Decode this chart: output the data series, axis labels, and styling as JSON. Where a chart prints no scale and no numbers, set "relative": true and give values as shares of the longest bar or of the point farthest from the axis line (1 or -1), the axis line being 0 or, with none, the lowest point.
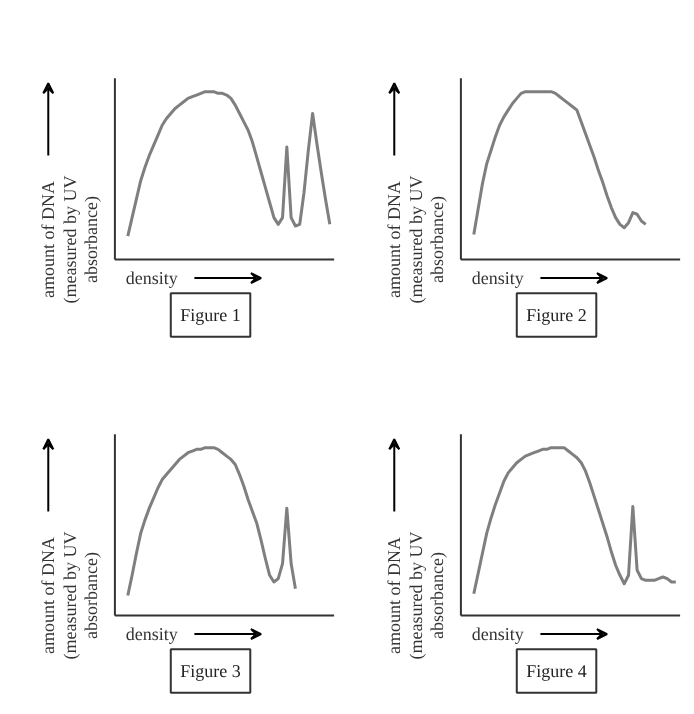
{
  "chart_data": [
    {
      "type": "line",
      "title": "Figure 1",
      "xlabel": "density",
      "ylabel": "amount of DNA (measured by UV absorbance)",
      "relative": true,
      "color": "#7f7f7f",
      "categories": [
        null,
        null,
        null,
        null,
        null,
        null,
        null,
        null,
        null,
        null,
        null,
        null,
        null,
        null,
        null,
        null,
        null,
        null,
        null,
        null,
        null,
        null,
        null,
        null,
        null,
        null,
        null,
        null,
        null,
        null,
        null,
        null,
        null,
        null,
        null,
        null,
        null,
        null,
        null,
        null,
        null,
        null,
        null,
        null,
        null,
        null,
        null,
        null
      ],
      "values": [
        0.14,
        0.25,
        0.36,
        0.47,
        0.55,
        0.62,
        0.68,
        0.74,
        0.8,
        0.84,
        0.87,
        0.9,
        0.92,
        0.94,
        0.96,
        0.97,
        0.98,
        0.99,
        1.0,
        1.0,
        1.0,
        0.99,
        0.99,
        0.98,
        0.96,
        0.92,
        0.87,
        0.82,
        0.77,
        0.7,
        0.61,
        0.52,
        0.43,
        0.34,
        0.25,
        0.21,
        0.25,
        0.67,
        0.25,
        0.2,
        0.21,
        0.4,
        0.65,
        0.87,
        0.69,
        0.52,
        0.36,
        0.21
      ]
    },
    {
      "type": "line",
      "title": "Figure 2",
      "xlabel": "density",
      "ylabel": "amount of DNA (measured by UV absorbance)",
      "relative": true,
      "color": "#7f7f7f",
      "categories": [
        null,
        null,
        null,
        null,
        null,
        null,
        null,
        null,
        null,
        null,
        null,
        null,
        null,
        null,
        null,
        null,
        null,
        null,
        null,
        null,
        null,
        null,
        null,
        null,
        null,
        null,
        null,
        null,
        null,
        null,
        null,
        null,
        null,
        null,
        null,
        null,
        null,
        null,
        null,
        null,
        null,
        null,
        null,
        null,
        null,
        null,
        null,
        null
      ],
      "values": [
        0.15,
        0.3,
        0.45,
        0.57,
        0.65,
        0.73,
        0.8,
        0.85,
        0.89,
        0.93,
        0.96,
        0.99,
        1.0,
        1.0,
        1.0,
        1.0,
        1.0,
        1.0,
        1.0,
        0.99,
        0.97,
        0.95,
        0.93,
        0.91,
        0.89,
        0.82,
        0.75,
        0.68,
        0.61,
        0.53,
        0.46,
        0.38,
        0.31,
        0.25,
        0.21,
        0.19,
        0.22,
        0.28,
        0.27,
        0.23,
        0.21,
        null,
        null,
        null,
        null,
        null,
        null,
        null
      ]
    },
    {
      "type": "line",
      "title": "Figure 3",
      "xlabel": "density",
      "ylabel": "amount of DNA (measured by UV absorbance)",
      "relative": true,
      "color": "#7f7f7f",
      "categories": [
        null,
        null,
        null,
        null,
        null,
        null,
        null,
        null,
        null,
        null,
        null,
        null,
        null,
        null,
        null,
        null,
        null,
        null,
        null,
        null,
        null,
        null,
        null,
        null,
        null,
        null,
        null,
        null,
        null,
        null,
        null,
        null,
        null,
        null,
        null,
        null,
        null,
        null,
        null,
        null,
        null,
        null,
        null,
        null,
        null,
        null,
        null,
        null
      ],
      "values": [
        0.12,
        0.24,
        0.37,
        0.49,
        0.57,
        0.64,
        0.7,
        0.76,
        0.81,
        0.84,
        0.87,
        0.9,
        0.93,
        0.95,
        0.97,
        0.98,
        0.99,
        0.99,
        1.0,
        1.0,
        1.0,
        0.99,
        0.97,
        0.95,
        0.93,
        0.9,
        0.84,
        0.77,
        0.69,
        0.62,
        0.55,
        0.45,
        0.34,
        0.24,
        0.2,
        0.22,
        0.31,
        0.64,
        0.31,
        0.16,
        null,
        null,
        null,
        null,
        null,
        null,
        null,
        null
      ]
    },
    {
      "type": "line",
      "title": "Figure 4",
      "xlabel": "density",
      "ylabel": "amount of DNA (measured by UV absorbance)",
      "relative": true,
      "color": "#7f7f7f",
      "categories": [
        null,
        null,
        null,
        null,
        null,
        null,
        null,
        null,
        null,
        null,
        null,
        null,
        null,
        null,
        null,
        null,
        null,
        null,
        null,
        null,
        null,
        null,
        null,
        null,
        null,
        null,
        null,
        null,
        null,
        null,
        null,
        null,
        null,
        null,
        null,
        null,
        null,
        null,
        null,
        null,
        null,
        null,
        null,
        null,
        null,
        null,
        null,
        null
      ],
      "values": [
        0.13,
        0.25,
        0.37,
        0.49,
        0.58,
        0.66,
        0.73,
        0.8,
        0.85,
        0.88,
        0.91,
        0.93,
        0.95,
        0.96,
        0.97,
        0.98,
        0.99,
        0.99,
        1.0,
        1.0,
        1.0,
        1.0,
        0.98,
        0.96,
        0.94,
        0.91,
        0.86,
        0.79,
        0.71,
        0.63,
        0.55,
        0.47,
        0.38,
        0.3,
        0.24,
        0.19,
        0.24,
        0.65,
        0.27,
        0.22,
        0.21,
        0.21,
        0.21,
        0.22,
        0.23,
        0.22,
        0.2,
        0.2
      ]
    }
  ]
}
